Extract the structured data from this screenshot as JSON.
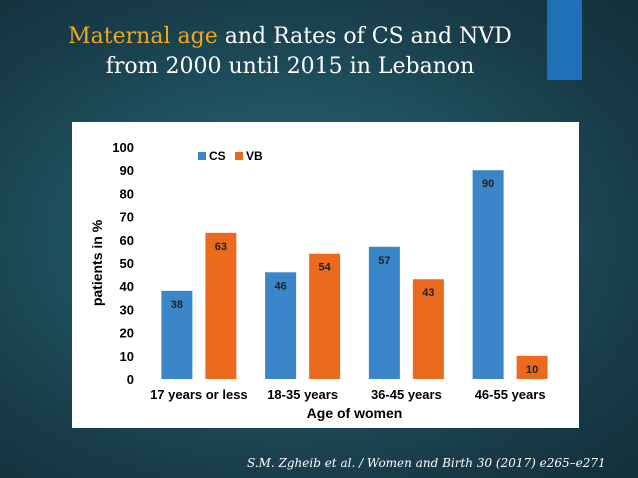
{
  "slide": {
    "title_highlight": "Maternal age",
    "title_rest_line1": " and Rates of CS and NVD",
    "title_line2": "from 2000 until 2015 in Lebanon",
    "caption": "S.M. Zgheib et al. / Women and Birth 30 (2017) e265–e271",
    "colors": {
      "highlight": "#f0a81e",
      "accent_bar": "#1e6fb8"
    }
  },
  "chart_data": {
    "type": "bar",
    "title": "",
    "categories": [
      "17 years or less",
      "18-35 years",
      "36-45 years",
      "46-55 years"
    ],
    "series": [
      {
        "name": "CS",
        "values": [
          38,
          46,
          57,
          90
        ],
        "color": "#3a86c8"
      },
      {
        "name": "VB",
        "values": [
          63,
          54,
          43,
          10
        ],
        "color": "#ec6a1e"
      }
    ],
    "xlabel": "Age of women",
    "ylabel": "patients in %",
    "ylim": [
      0,
      100
    ],
    "yticks": [
      0,
      10,
      20,
      30,
      40,
      50,
      60,
      70,
      80,
      90,
      100
    ],
    "grid": false,
    "legend_position": "top-left"
  }
}
